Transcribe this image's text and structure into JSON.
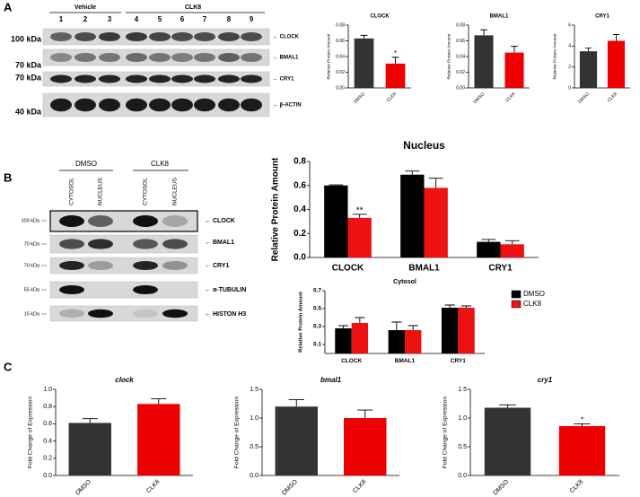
{
  "panels": [
    "A",
    "B",
    "C"
  ],
  "blot_a": {
    "groups": [
      "Vehicle",
      "CLK8"
    ],
    "lanes": [
      "1",
      "2",
      "3",
      "4",
      "5",
      "6",
      "7",
      "8",
      "9"
    ],
    "markers": [
      "100 kDa",
      "70 kDa",
      "70 kDa",
      "40 kDa"
    ],
    "proteins": [
      "← CLOCK",
      "← BMAL1",
      "← CRY1",
      "← β-ACTIN"
    ]
  },
  "blot_b": {
    "groups": [
      "DMSO",
      "CLK8"
    ],
    "fractions": [
      "CYTOSOL",
      "NUCLEUS",
      "CYTOSOL",
      "NUCLEUS"
    ],
    "markers": [
      "100 kDa",
      "70 kDa",
      "70 kDa",
      "55 kDa",
      "15 kDa"
    ],
    "proteins": [
      "← CLOCK",
      "← BMAL1",
      "← CRY1",
      "← α-TUBULIN",
      "← HISTON H3"
    ]
  },
  "chart_data": [
    {
      "type": "bar",
      "title": "CLOCK",
      "ylabel": "Relative Protein Amount",
      "categories": [
        "DMSO",
        "CLK8"
      ],
      "values": [
        0.063,
        0.031
      ],
      "errors": [
        0.004,
        0.008
      ],
      "colors": [
        "#333333",
        "#ee0000"
      ],
      "ylim": [
        0,
        0.08
      ],
      "yticks": [
        {
          "value": 0,
          "label": "0.00"
        },
        0.02,
        0.04,
        0.06,
        0.08
      ],
      "annotations": [
        "*"
      ]
    },
    {
      "type": "bar",
      "title": "BMAL1",
      "ylabel": "Relative Protein Amount",
      "categories": [
        "DMSO",
        "CLK8"
      ],
      "values": [
        0.067,
        0.045
      ],
      "errors": [
        0.007,
        0.008
      ],
      "colors": [
        "#333333",
        "#ee0000"
      ],
      "ylim": [
        0,
        0.08
      ],
      "yticks": [
        {
          "value": 0,
          "label": "0.00"
        },
        0.02,
        0.04,
        0.06,
        0.08
      ]
    },
    {
      "type": "bar",
      "title": "CRY1",
      "ylabel": "Relative Protein Amount",
      "categories": [
        "DMSO",
        "CLK8"
      ],
      "values": [
        3.5,
        4.5
      ],
      "errors": [
        0.3,
        0.6
      ],
      "colors": [
        "#333333",
        "#ee0000"
      ],
      "ylim": [
        0,
        6
      ],
      "yticks": [
        0,
        2,
        4,
        6
      ]
    },
    {
      "type": "bar",
      "title": "Nucleus",
      "ylabel": "Relative Protein Amount",
      "categories": [
        "CLOCK",
        "BMAL1",
        "CRY1"
      ],
      "series": [
        {
          "name": "DMSO",
          "color": "#000000",
          "values": [
            0.6,
            0.69,
            0.13
          ],
          "errors": [
            0.005,
            0.03,
            0.02
          ]
        },
        {
          "name": "CLK8",
          "color": "#ee1111",
          "values": [
            0.33,
            0.58,
            0.11
          ],
          "errors": [
            0.03,
            0.08,
            0.03
          ]
        }
      ],
      "ylim": [
        0,
        0.8
      ],
      "yticks": [
        {
          "value": 0,
          "label": "0.0"
        },
        0.2,
        0.4,
        0.6,
        0.8
      ],
      "annotations": [
        "**"
      ]
    },
    {
      "type": "bar",
      "title": "Cytosol",
      "ylabel": "Relative Protein Amount",
      "categories": [
        "CLOCK",
        "BMAL1",
        "CRY1"
      ],
      "series": [
        {
          "name": "DMSO",
          "color": "#000000",
          "values": [
            0.28,
            0.26,
            0.51
          ],
          "errors": [
            0.03,
            0.09,
            0.03
          ]
        },
        {
          "name": "CLK8",
          "color": "#ee1111",
          "values": [
            0.34,
            0.26,
            0.51
          ],
          "errors": [
            0.06,
            0.05,
            0.02
          ]
        }
      ],
      "ylim": [
        0,
        0.7
      ],
      "yticks": [
        0.1,
        0.3,
        0.5,
        0.7
      ],
      "legend": "right"
    },
    {
      "type": "bar",
      "title": "clock",
      "ylabel": "Fold Change of Expression",
      "categories": [
        "DMSO",
        "CLK8"
      ],
      "values": [
        0.61,
        0.83
      ],
      "errors": [
        0.05,
        0.06
      ],
      "colors": [
        "#333333",
        "#ee0000"
      ],
      "ylim": [
        0,
        1.0
      ],
      "yticks": [
        {
          "value": 0,
          "label": "0.0"
        },
        0.2,
        0.4,
        0.6,
        0.8,
        {
          "value": 1,
          "label": "1.0"
        }
      ]
    },
    {
      "type": "bar",
      "title": "bmal1",
      "ylabel": "Fold Change of Expression",
      "categories": [
        "DMSO",
        "CLK8"
      ],
      "values": [
        1.2,
        1.0
      ],
      "errors": [
        0.12,
        0.14
      ],
      "colors": [
        "#333333",
        "#ee0000"
      ],
      "ylim": [
        0,
        1.5
      ],
      "yticks": [
        {
          "value": 0,
          "label": "0.0"
        },
        0.5,
        {
          "value": 1,
          "label": "1.0"
        },
        1.5
      ]
    },
    {
      "type": "bar",
      "title": "cry1",
      "ylabel": "Fold Change of Expression",
      "categories": [
        "DMSO",
        "CLK8"
      ],
      "values": [
        1.18,
        0.86
      ],
      "errors": [
        0.05,
        0.04
      ],
      "colors": [
        "#333333",
        "#ee0000"
      ],
      "ylim": [
        0,
        1.5
      ],
      "yticks": [
        {
          "value": 0,
          "label": "0.0"
        },
        0.5,
        {
          "value": 1,
          "label": "1.0"
        },
        1.5
      ],
      "annotations": [
        "*"
      ]
    }
  ]
}
